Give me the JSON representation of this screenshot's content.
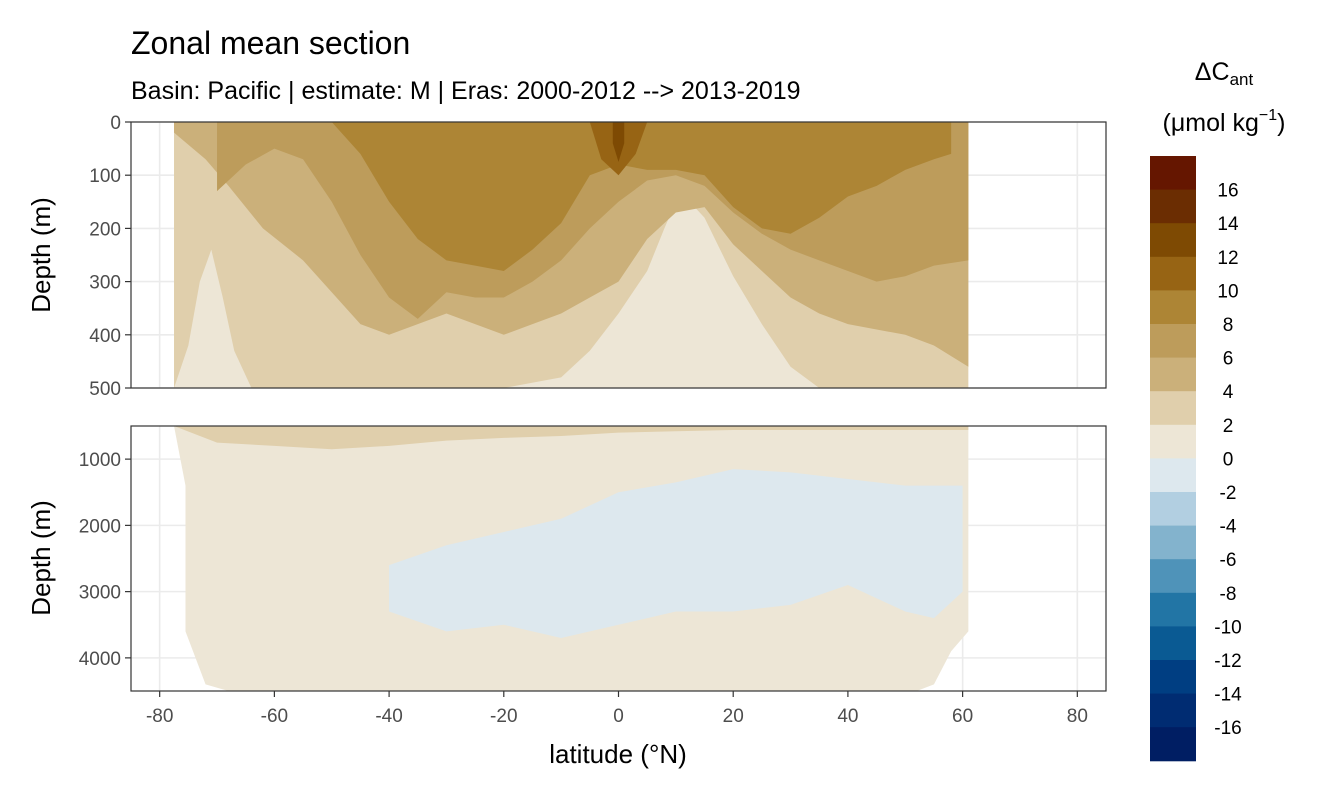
{
  "chart_data": {
    "type": "heatmap",
    "title": "Zonal mean section",
    "subtitle": "Basin: Pacific | estimate: M  | Eras: 2000-2012 --> 2013-2019",
    "xlabel": "latitude (°N)",
    "ylabel": "Depth (m)",
    "legend_title": "ΔC",
    "legend_title_sub": "ant",
    "legend_unit_prefix": "(μmol kg",
    "legend_unit_sup": "−1",
    "legend_unit_suffix": ")",
    "legend_position": "right",
    "grid": true,
    "x_ticks": [
      "-80",
      "-60",
      "-40",
      "-20",
      "0",
      "20",
      "40",
      "60",
      "80"
    ],
    "xlim": [
      -85,
      85
    ],
    "panels": [
      {
        "name": "upper",
        "ylim": [
          500,
          0
        ],
        "y_ticks": [
          "0",
          "100",
          "200",
          "300",
          "400",
          "500"
        ],
        "land_lat_range": [
          -77.5,
          61
        ],
        "level_profiles": [
          {
            "level": "0 - 2",
            "lats": [
              -77.5,
              -75,
              -73,
              -71,
              -69,
              -67,
              -64
            ],
            "depths": [
              500,
              420,
              300,
              240,
              330,
              430,
              500
            ]
          },
          {
            "level": "2 - 4",
            "lats": [
              -20,
              -10,
              -5,
              0,
              5,
              8,
              10,
              12,
              15,
              20,
              25,
              30,
              35,
              40,
              45
            ],
            "depths": [
              500,
              480,
              430,
              360,
              280,
              200,
              150,
              145,
              180,
              290,
              380,
              460,
              500,
              500,
              500
            ]
          },
          {
            "level": "4 - 6",
            "lats": [
              -77.5,
              -72,
              -68,
              -62,
              -55,
              -50,
              -45,
              -40,
              -35,
              -30,
              -25,
              -20,
              -15,
              -10,
              -5,
              0,
              5,
              10,
              15,
              20,
              25,
              30,
              35,
              40,
              45,
              50,
              55,
              61
            ],
            "depths": [
              20,
              70,
              120,
              200,
              260,
              320,
              380,
              400,
              380,
              360,
              380,
              400,
              380,
              360,
              330,
              300,
              220,
              170,
              160,
              230,
              280,
              330,
              360,
              380,
              390,
              400,
              420,
              460
            ]
          },
          {
            "level": "6 - 8",
            "lats": [
              -70,
              -65,
              -60,
              -55,
              -50,
              -45,
              -40,
              -35,
              -30,
              -25,
              -20,
              -15,
              -10,
              -5,
              0,
              5,
              10,
              15,
              20,
              25,
              30,
              35,
              40,
              45,
              50,
              55,
              61
            ],
            "depths": [
              130,
              80,
              50,
              70,
              150,
              250,
              330,
              370,
              320,
              330,
              330,
              300,
              260,
              200,
              150,
              110,
              100,
              120,
              170,
              210,
              240,
              260,
              280,
              300,
              290,
              270,
              260
            ]
          },
          {
            "level": "8 - 10",
            "lats": [
              -50,
              -45,
              -40,
              -35,
              -30,
              -25,
              -20,
              -15,
              -10,
              -5,
              0,
              5,
              10,
              15,
              20,
              25,
              30,
              35,
              40,
              45,
              50,
              55,
              58
            ],
            "depths": [
              0,
              60,
              150,
              220,
              260,
              270,
              280,
              240,
              190,
              100,
              80,
              90,
              90,
              100,
              160,
              200,
              210,
              180,
              140,
              120,
              90,
              70,
              60
            ]
          },
          {
            "level": "10 - 12",
            "lats": [
              -5,
              -3,
              0,
              3,
              5
            ],
            "depths": [
              0,
              70,
              100,
              60,
              0
            ]
          },
          {
            "level": "12 - 14",
            "lats": [
              -1,
              0,
              1
            ],
            "depths": [
              40,
              75,
              40
            ]
          }
        ]
      },
      {
        "name": "lower",
        "ylim": [
          4500,
          500
        ],
        "y_ticks": [
          "1000",
          "2000",
          "3000",
          "4000"
        ],
        "land_lat_range": [
          -77.5,
          61
        ],
        "level_profiles": [
          {
            "level": "-2 - 0",
            "lats": [
              -40,
              -30,
              -20,
              -10,
              0,
              10,
              20,
              30,
              40,
              50,
              55,
              60
            ],
            "depths_top": [
              2600,
              2300,
              2100,
              1900,
              1500,
              1350,
              1150,
              1200,
              1300,
              1400,
              1400,
              1400
            ],
            "depths_bottom": [
              3300,
              3600,
              3500,
              3700,
              3500,
              3300,
              3300,
              3200,
              2900,
              3300,
              3400,
              3000
            ]
          },
          {
            "level": "2 - 4",
            "lats": [
              -77.5,
              -70,
              -60,
              -50,
              -40,
              -30,
              -20,
              -10,
              0,
              10,
              20,
              40,
              61
            ],
            "depths": [
              500,
              750,
              800,
              850,
              800,
              720,
              680,
              650,
              600,
              580,
              560,
              560,
              560
            ]
          }
        ]
      }
    ],
    "color_scale": {
      "levels": [
        {
          "label": "-16",
          "color": "#001e63"
        },
        {
          "label": "-14",
          "color": "#002c72"
        },
        {
          "label": "-12",
          "color": "#003e82"
        },
        {
          "label": "-10",
          "color": "#0a5a93"
        },
        {
          "label": "-8",
          "color": "#2275a5"
        },
        {
          "label": "-6",
          "color": "#4f93b9"
        },
        {
          "label": "-4",
          "color": "#83b3cd"
        },
        {
          "label": "-2",
          "color": "#b2cfe1"
        },
        {
          "label": "0",
          "color": "#dde8ee"
        },
        {
          "label": "2",
          "color": "#ede6d6"
        },
        {
          "label": "4",
          "color": "#e0cfac"
        },
        {
          "label": "6",
          "color": "#cbb07a"
        },
        {
          "label": "8",
          "color": "#bd9c5b"
        },
        {
          "label": "10",
          "color": "#ad8535"
        },
        {
          "label": "12",
          "color": "#976414"
        },
        {
          "label": "14",
          "color": "#7e4a03"
        },
        {
          "label": "16",
          "color": "#6b2d02"
        },
        {
          "label": "",
          "color": "#651600"
        }
      ]
    }
  }
}
